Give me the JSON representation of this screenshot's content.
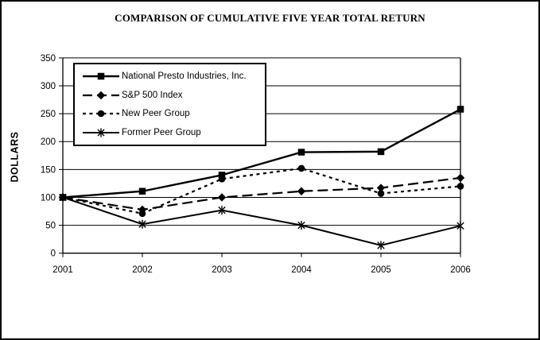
{
  "window": {
    "background_color": "#ffffff",
    "border_color": "#000000"
  },
  "chart_data": {
    "type": "line",
    "title": "COMPARISON OF CUMULATIVE FIVE YEAR TOTAL RETURN",
    "xlabel": "",
    "ylabel": "DOLLARS",
    "categories": [
      "2001",
      "2002",
      "2003",
      "2004",
      "2005",
      "2006"
    ],
    "yticks": [
      0,
      50,
      100,
      150,
      200,
      250,
      300,
      350
    ],
    "ylim": [
      0,
      350
    ],
    "grid": "horizontal",
    "legend_position": "upper-left-inside",
    "line_color": "#000000",
    "series": [
      {
        "name": "National Presto Industries, Inc.",
        "marker": "square",
        "line_style": "solid",
        "values": [
          100,
          111,
          140,
          181,
          182,
          258
        ]
      },
      {
        "name": "S&P 500 Index",
        "marker": "diamond",
        "line_style": "dashed",
        "values": [
          100,
          78,
          100,
          111,
          117,
          135
        ]
      },
      {
        "name": "New Peer Group",
        "marker": "circle",
        "line_style": "dotted",
        "values": [
          100,
          71,
          133,
          152,
          107,
          120
        ]
      },
      {
        "name": "Former Peer Group",
        "marker": "asterisk",
        "line_style": "solid",
        "values": [
          100,
          52,
          77,
          50,
          14,
          49
        ]
      }
    ]
  }
}
